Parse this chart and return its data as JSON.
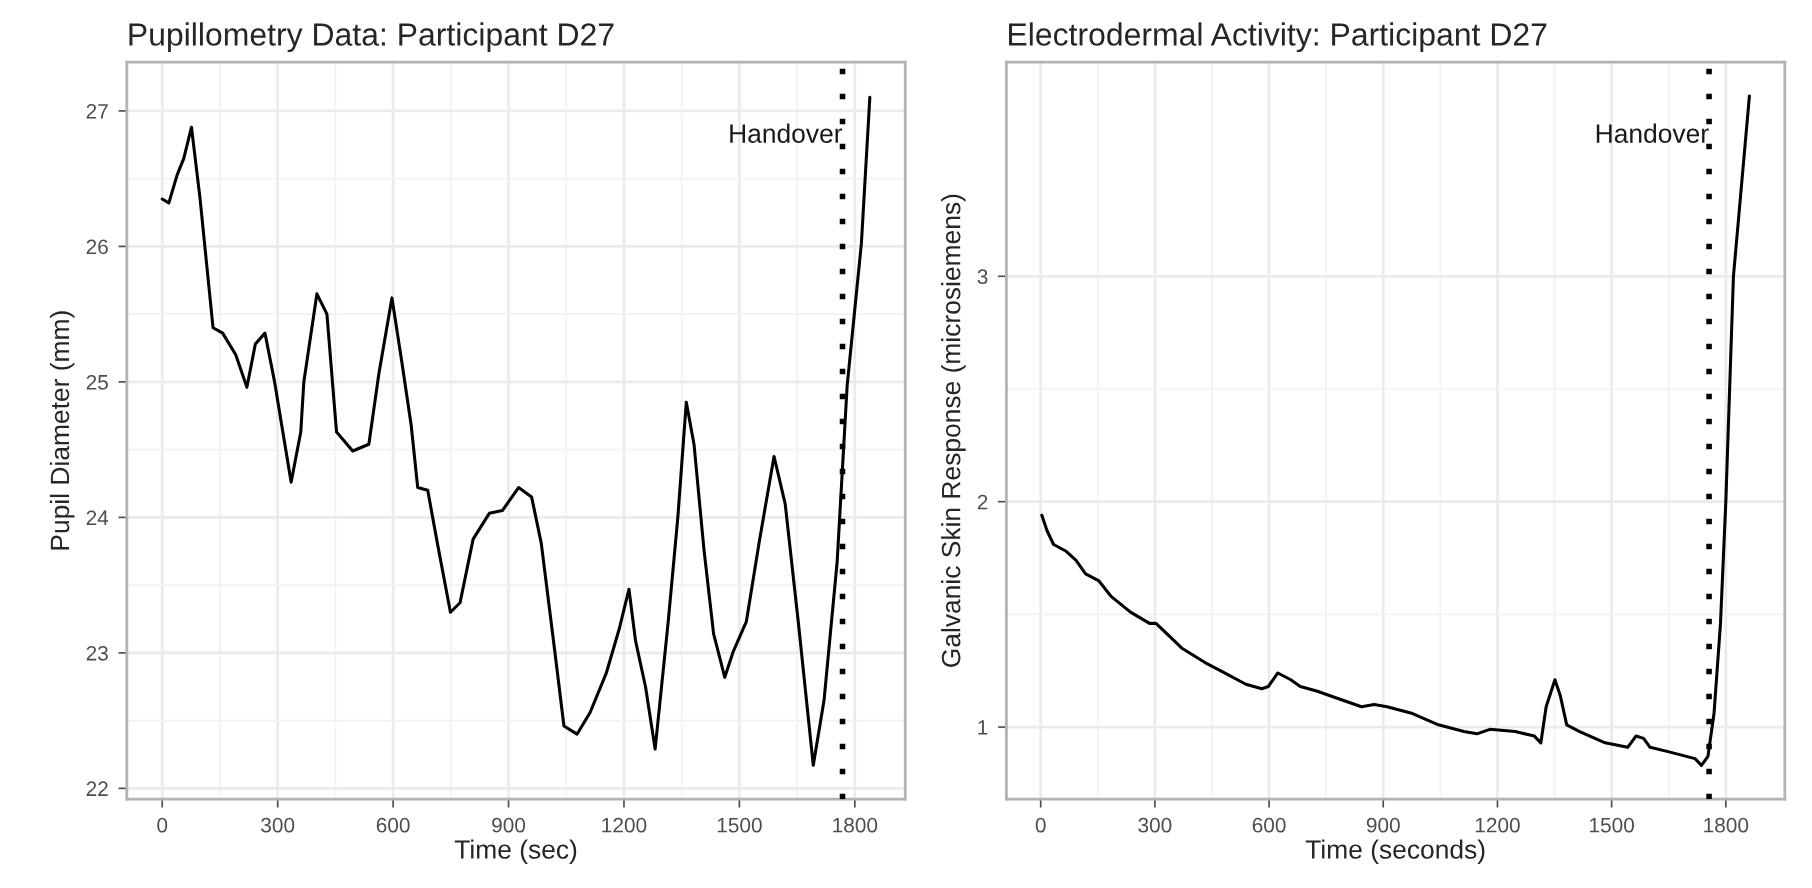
{
  "chart_data": [
    {
      "type": "line",
      "title": "Pupillometry Data: Participant D27",
      "xlabel": "Time (sec)",
      "ylabel": "Pupil Diameter (mm)",
      "xlim": [
        -92,
        1931
      ],
      "ylim": [
        21.92,
        27.36
      ],
      "xticks": [
        0,
        300,
        600,
        900,
        1200,
        1500,
        1800
      ],
      "yticks": [
        22,
        23,
        24,
        25,
        26,
        27
      ],
      "grid": true,
      "legend": false,
      "series": [
        {
          "color": "#000000",
          "x": [
            0,
            17,
            39,
            56,
            76,
            98,
            132,
            157,
            191,
            220,
            242,
            267,
            292,
            335,
            360,
            368,
            402,
            428,
            453,
            495,
            537,
            563,
            597,
            622,
            647,
            664,
            690,
            715,
            749,
            774,
            808,
            850,
            884,
            926,
            960,
            985,
            1019,
            1044,
            1078,
            1112,
            1154,
            1188,
            1213,
            1230,
            1256,
            1281,
            1315,
            1340,
            1362,
            1382,
            1408,
            1433,
            1462,
            1484,
            1518,
            1551,
            1590,
            1619,
            1653,
            1692,
            1720,
            1754,
            1780,
            1817,
            1839
          ],
          "values": [
            26.35,
            26.32,
            26.53,
            26.65,
            26.88,
            26.36,
            25.4,
            25.36,
            25.2,
            24.96,
            25.28,
            25.36,
            25.0,
            24.26,
            24.63,
            25.0,
            25.65,
            25.5,
            24.63,
            24.49,
            24.54,
            25.06,
            25.62,
            25.16,
            24.68,
            24.22,
            24.2,
            23.81,
            23.3,
            23.37,
            23.84,
            24.03,
            24.05,
            24.22,
            24.15,
            23.81,
            23.04,
            22.46,
            22.4,
            22.56,
            22.85,
            23.18,
            23.47,
            23.09,
            22.75,
            22.29,
            23.23,
            24.0,
            24.85,
            24.54,
            23.76,
            23.14,
            22.82,
            23.01,
            23.23,
            23.81,
            24.45,
            24.1,
            23.23,
            22.17,
            22.65,
            23.67,
            24.97,
            26.02,
            27.1
          ]
        }
      ],
      "ref_lines": [
        {
          "axis": "x",
          "value": 1768,
          "label": "Handover",
          "line_style": "dotted",
          "color": "#000000"
        }
      ]
    },
    {
      "type": "line",
      "title": "Electrodermal Activity: Participant D27",
      "xlabel": "Time (seconds)",
      "ylabel": "Galvanic Skin Response (microsiemens)",
      "xlim": [
        -90,
        1955
      ],
      "ylim": [
        0.68,
        3.95
      ],
      "xticks": [
        0,
        300,
        600,
        900,
        1200,
        1500,
        1800
      ],
      "yticks": [
        1,
        2,
        3
      ],
      "grid": true,
      "legend": false,
      "series": [
        {
          "color": "#000000",
          "x": [
            3,
            17,
            34,
            67,
            93,
            118,
            152,
            185,
            236,
            286,
            303,
            371,
            438,
            472,
            539,
            581,
            598,
            623,
            657,
            682,
            725,
            792,
            843,
            876,
            910,
            977,
            1045,
            1112,
            1146,
            1180,
            1247,
            1297,
            1314,
            1328,
            1351,
            1365,
            1382,
            1416,
            1483,
            1542,
            1564,
            1584,
            1601,
            1651,
            1719,
            1736,
            1753,
            1769,
            1786,
            1800,
            1820,
            1862
          ],
          "values": [
            1.94,
            1.87,
            1.81,
            1.78,
            1.74,
            1.68,
            1.65,
            1.58,
            1.51,
            1.46,
            1.46,
            1.35,
            1.28,
            1.25,
            1.19,
            1.17,
            1.18,
            1.24,
            1.21,
            1.18,
            1.16,
            1.12,
            1.09,
            1.1,
            1.09,
            1.06,
            1.01,
            0.98,
            0.97,
            0.99,
            0.98,
            0.96,
            0.93,
            1.09,
            1.21,
            1.14,
            1.01,
            0.98,
            0.93,
            0.91,
            0.96,
            0.95,
            0.91,
            0.89,
            0.86,
            0.83,
            0.87,
            1.06,
            1.46,
            2.0,
            3.0,
            3.8
          ]
        }
      ],
      "ref_lines": [
        {
          "axis": "x",
          "value": 1756,
          "label": "Handover",
          "line_style": "dotted",
          "color": "#000000"
        }
      ]
    }
  ]
}
